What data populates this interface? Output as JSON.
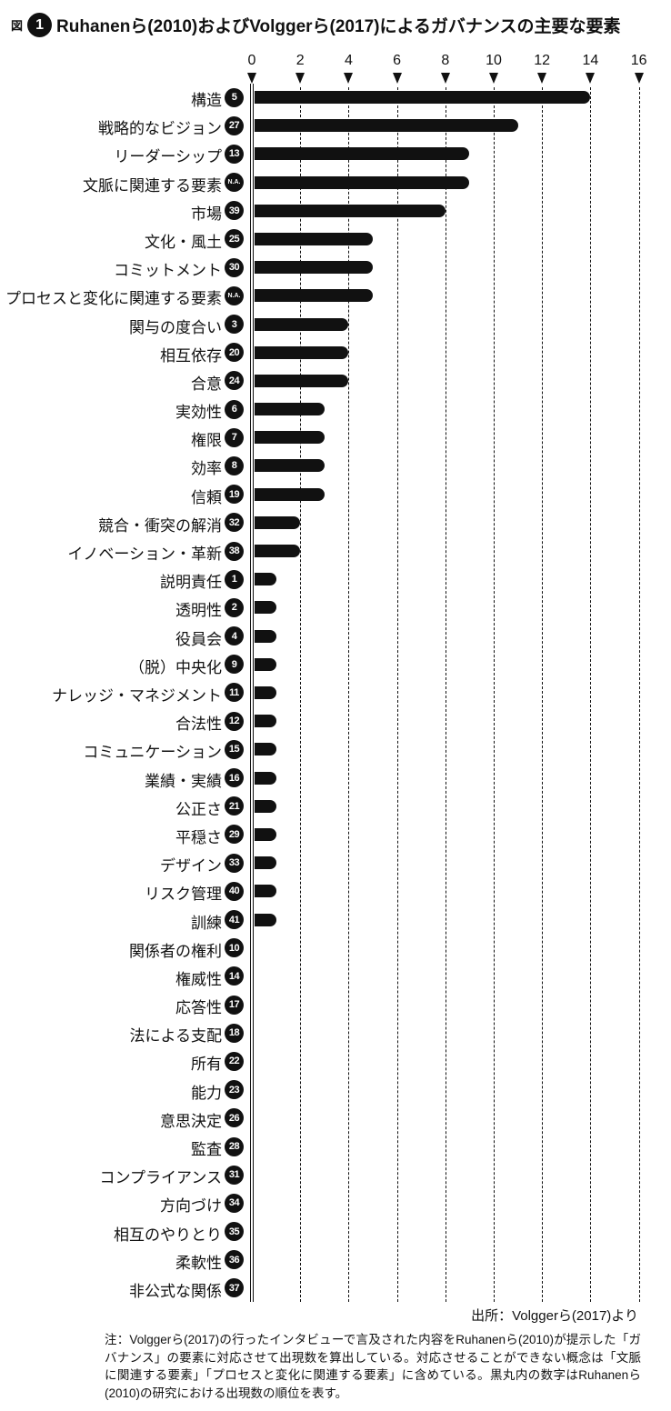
{
  "figure": {
    "prefix": "図",
    "number": "1",
    "title": "Ruhanenら(2010)およびVolggerら(2017)によるガバナンスの主要な要素"
  },
  "chart_data": {
    "type": "bar",
    "orientation": "horizontal",
    "title": "Ruhanenら(2010)およびVolggerら(2017)によるガバナンスの主要な要素",
    "xlabel": "",
    "ylabel": "",
    "xlim": [
      0,
      16
    ],
    "x_ticks": [
      0,
      2,
      4,
      6,
      8,
      10,
      12,
      14,
      16
    ],
    "grid": "dashed-vertical",
    "bar_color": "#111111",
    "categories": [
      "構造",
      "戦略的なビジョン",
      "リーダーシップ",
      "文脈に関連する要素",
      "市場",
      "文化・風土",
      "コミットメント",
      "プロセスと変化に関連する要素",
      "関与の度合い",
      "相互依存",
      "合意",
      "実効性",
      "権限",
      "効率",
      "信頼",
      "競合・衝突の解消",
      "イノベーション・革新",
      "説明責任",
      "透明性",
      "役員会",
      "（脱）中央化",
      "ナレッジ・マネジメント",
      "合法性",
      "コミュニケーション",
      "業績・実績",
      "公正さ",
      "平穏さ",
      "デザイン",
      "リスク管理",
      "訓練",
      "関係者の権利",
      "権威性",
      "応答性",
      "法による支配",
      "所有",
      "能力",
      "意思決定",
      "監査",
      "コンプライアンス",
      "方向づけ",
      "相互のやりとり",
      "柔軟性",
      "非公式な関係"
    ],
    "ranks": [
      "5",
      "27",
      "13",
      "N.A.",
      "39",
      "25",
      "30",
      "N.A.",
      "3",
      "20",
      "24",
      "6",
      "7",
      "8",
      "19",
      "32",
      "38",
      "1",
      "2",
      "4",
      "9",
      "11",
      "12",
      "15",
      "16",
      "21",
      "29",
      "33",
      "40",
      "41",
      "10",
      "14",
      "17",
      "18",
      "22",
      "23",
      "26",
      "28",
      "31",
      "34",
      "35",
      "36",
      "37"
    ],
    "values": [
      14,
      11,
      9,
      9,
      8,
      5,
      5,
      5,
      4,
      4,
      4,
      3,
      3,
      3,
      3,
      2,
      2,
      1,
      1,
      1,
      1,
      1,
      1,
      1,
      1,
      1,
      1,
      1,
      1,
      1,
      0,
      0,
      0,
      0,
      0,
      0,
      0,
      0,
      0,
      0,
      0,
      0,
      0
    ]
  },
  "source": "出所：Volggerら(2017)より",
  "note": "注：Volggerら(2017)の行ったインタビューで言及された内容をRuhanenら(2010)が提示した「ガバナンス」の要素に対応させて出現数を算出している。対応させることができない概念は「文脈に関連する要素」「プロセスと変化に関連する要素」に含めている。黒丸内の数字はRuhanenら(2010)の研究における出現数の順位を表す。"
}
